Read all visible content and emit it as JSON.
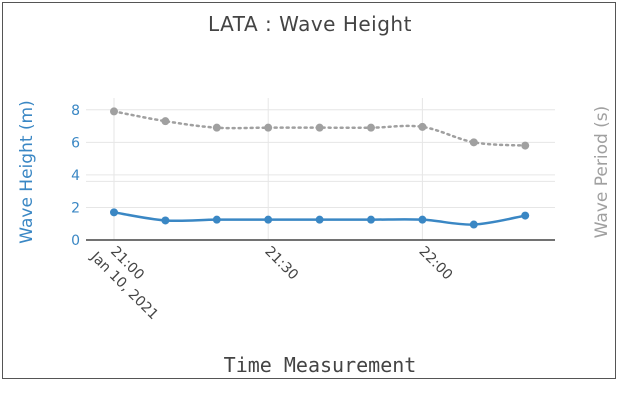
{
  "chart_data": {
    "type": "line",
    "title": "LATA : Wave Height",
    "xlabel": "Time Measurement",
    "ylabel_left": "Wave Height (m)",
    "ylabel_right": "Wave Period (s)",
    "x": [
      "21:00",
      "21:10",
      "21:20",
      "21:30",
      "21:40",
      "21:50",
      "22:00",
      "22:10",
      "22:20"
    ],
    "x_start_date": "Jan 10, 2021",
    "x_ticks": [
      {
        "label": "21:00",
        "sub": "Jan 10, 2021"
      },
      {
        "label": "21:30",
        "sub": ""
      },
      {
        "label": "22:00",
        "sub": ""
      }
    ],
    "y_left_ticks": [
      0,
      2,
      4,
      6,
      8
    ],
    "y_left_range": [
      0,
      8.6
    ],
    "grid": true,
    "series": [
      {
        "name": "Wave Height (m)",
        "axis": "left",
        "style": "solid",
        "color": "#3a87c4",
        "values": [
          1.7,
          1.2,
          1.25,
          1.25,
          1.25,
          1.25,
          1.25,
          0.95,
          1.5
        ]
      },
      {
        "name": "Wave Period (s)",
        "axis": "right",
        "style": "dotted",
        "color": "#a0a0a0",
        "values": [
          7.9,
          7.3,
          6.9,
          6.9,
          6.9,
          6.9,
          6.95,
          6.0,
          5.8
        ]
      }
    ],
    "colors": {
      "left_axis": "#3a87c4",
      "right_axis": "#a0a0a0",
      "grid": "#e6e6e6",
      "zero_line": "#444444"
    }
  }
}
